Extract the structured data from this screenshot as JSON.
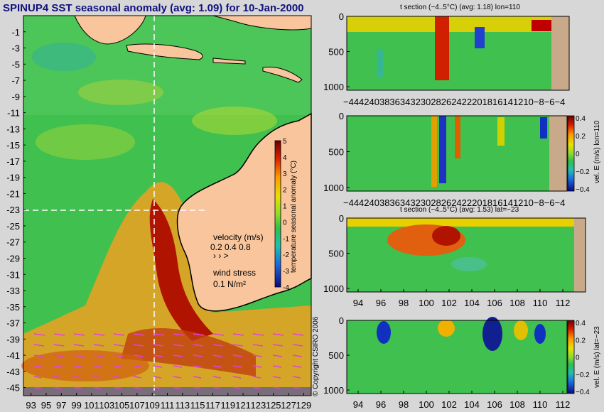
{
  "header": {
    "title": "SPINUP4 SST seasonal anomaly (avg: 1.09) for 10-Jan-2000"
  },
  "copyright": "© Copyright CSIRO 2006",
  "colors": {
    "page_bg": "#d7d7d7",
    "land": "#f9c59c",
    "land_section": "#c8aa8a",
    "ocean": "#3fc04f",
    "title": "#101080"
  },
  "chart_data": [
    {
      "type": "heatmap",
      "panel": "map",
      "title": "SPINUP4 SST seasonal anomaly (avg: 1.09) for 10-Jan-2000",
      "x_ticks": [
        "93",
        "95",
        "97",
        "99",
        "101",
        "103",
        "105",
        "107",
        "109",
        "111",
        "113",
        "115",
        "117",
        "119",
        "121",
        "123",
        "125",
        "127",
        "129"
      ],
      "y_ticks": [
        "-1",
        "-3",
        "-5",
        "-7",
        "-9",
        "-11",
        "-13",
        "-15",
        "-17",
        "-19",
        "-21",
        "-23",
        "-25",
        "-27",
        "-29",
        "-31",
        "-33",
        "-35",
        "-37",
        "-39",
        "-41",
        "-43",
        "-45"
      ],
      "xlim": [
        92,
        130
      ],
      "ylim": [
        -46,
        1
      ],
      "colorbar": {
        "label": "temperature seasonal anomaly (°C)",
        "ticks": [
          "5",
          "4",
          "3",
          "2",
          "1",
          "0",
          "-1",
          "-2",
          "-3",
          "-4"
        ],
        "range": [
          -4,
          5
        ]
      },
      "section_lines": {
        "lon": 110,
        "lat": -23
      },
      "legend": {
        "velocity_label": "velocity (m/s)",
        "velocity_values": "0.2 0.4 0.8",
        "wind_label": "wind stress",
        "wind_value": "0.1 N/m²"
      }
    },
    {
      "type": "heatmap",
      "panel": "t-section-lon",
      "title": "t section (−4..5°C) (avg: 1.18) lon=110",
      "x_ticks": [
        "-44",
        "-42",
        "-40",
        "-38",
        "-36",
        "-34",
        "-32",
        "-30",
        "-28",
        "-26",
        "-24",
        "-22",
        "-20",
        "-18",
        "-16",
        "-14",
        "-12",
        "-10",
        "-8",
        "-6",
        "-4"
      ],
      "x_tick_text": "−444240383634323028262422201816141210−8−6−4",
      "y_ticks": [
        "0",
        "500",
        "1000"
      ],
      "xlim": [
        -45,
        -3
      ],
      "ylim": [
        1050,
        0
      ]
    },
    {
      "type": "heatmap",
      "panel": "vel-section-lon",
      "title": "",
      "x_ticks": [
        "-44",
        "-42",
        "-40",
        "-38",
        "-36",
        "-34",
        "-32",
        "-30",
        "-28",
        "-26",
        "-24",
        "-22",
        "-20",
        "-18",
        "-16",
        "-14",
        "-12",
        "-10",
        "-8",
        "-6",
        "-4"
      ],
      "x_tick_text": "−444240383634323028262422201816141210−8−6−4",
      "y_ticks": [
        "0",
        "500",
        "1000"
      ],
      "xlim": [
        -45,
        -3
      ],
      "ylim": [
        1050,
        0
      ],
      "colorbar": {
        "label": "vel. E (m/s) lon=110",
        "ticks": [
          "0.4",
          "0.2",
          "0",
          "−0.2",
          "−0.4"
        ],
        "range": [
          -0.4,
          0.4
        ]
      }
    },
    {
      "type": "heatmap",
      "panel": "t-section-lat",
      "title": "t section (−4..5°C) (avg: 1.53) lat=−23",
      "x_ticks": [
        "94",
        "96",
        "98",
        "100",
        "102",
        "104",
        "106",
        "108",
        "110",
        "112"
      ],
      "y_ticks": [
        "0",
        "500",
        "1000"
      ],
      "xlim": [
        93,
        114
      ],
      "ylim": [
        1050,
        0
      ]
    },
    {
      "type": "heatmap",
      "panel": "vel-section-lat",
      "title": "",
      "x_ticks": [
        "94",
        "96",
        "98",
        "100",
        "102",
        "104",
        "106",
        "108",
        "110",
        "112"
      ],
      "y_ticks": [
        "0",
        "500",
        "1000"
      ],
      "xlim": [
        93,
        114
      ],
      "ylim": [
        1050,
        0
      ],
      "colorbar": {
        "label": "vel. E (m/s) lat=−23",
        "ticks": [
          "0.4",
          "0.2",
          "0",
          "−0.2",
          "−0.4"
        ],
        "range": [
          -0.4,
          0.4
        ]
      }
    }
  ]
}
